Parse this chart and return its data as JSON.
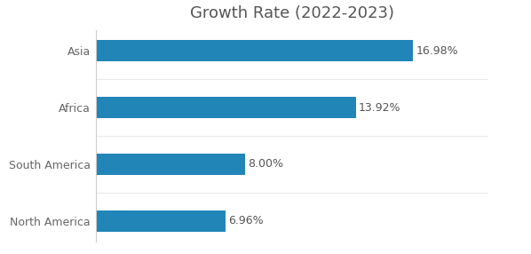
{
  "title": "Growth Rate (2022-2023)",
  "categories": [
    "North America",
    "South America",
    "Africa",
    "Asia"
  ],
  "values": [
    6.96,
    8.0,
    13.92,
    16.98
  ],
  "labels": [
    "6.96%",
    "8.00%",
    "13.92%",
    "16.98%"
  ],
  "bar_color": "#2185b8",
  "background_color": "#ffffff",
  "title_fontsize": 13,
  "label_fontsize": 9,
  "tick_fontsize": 9,
  "xlim": [
    0,
    21
  ],
  "bar_height": 0.38
}
